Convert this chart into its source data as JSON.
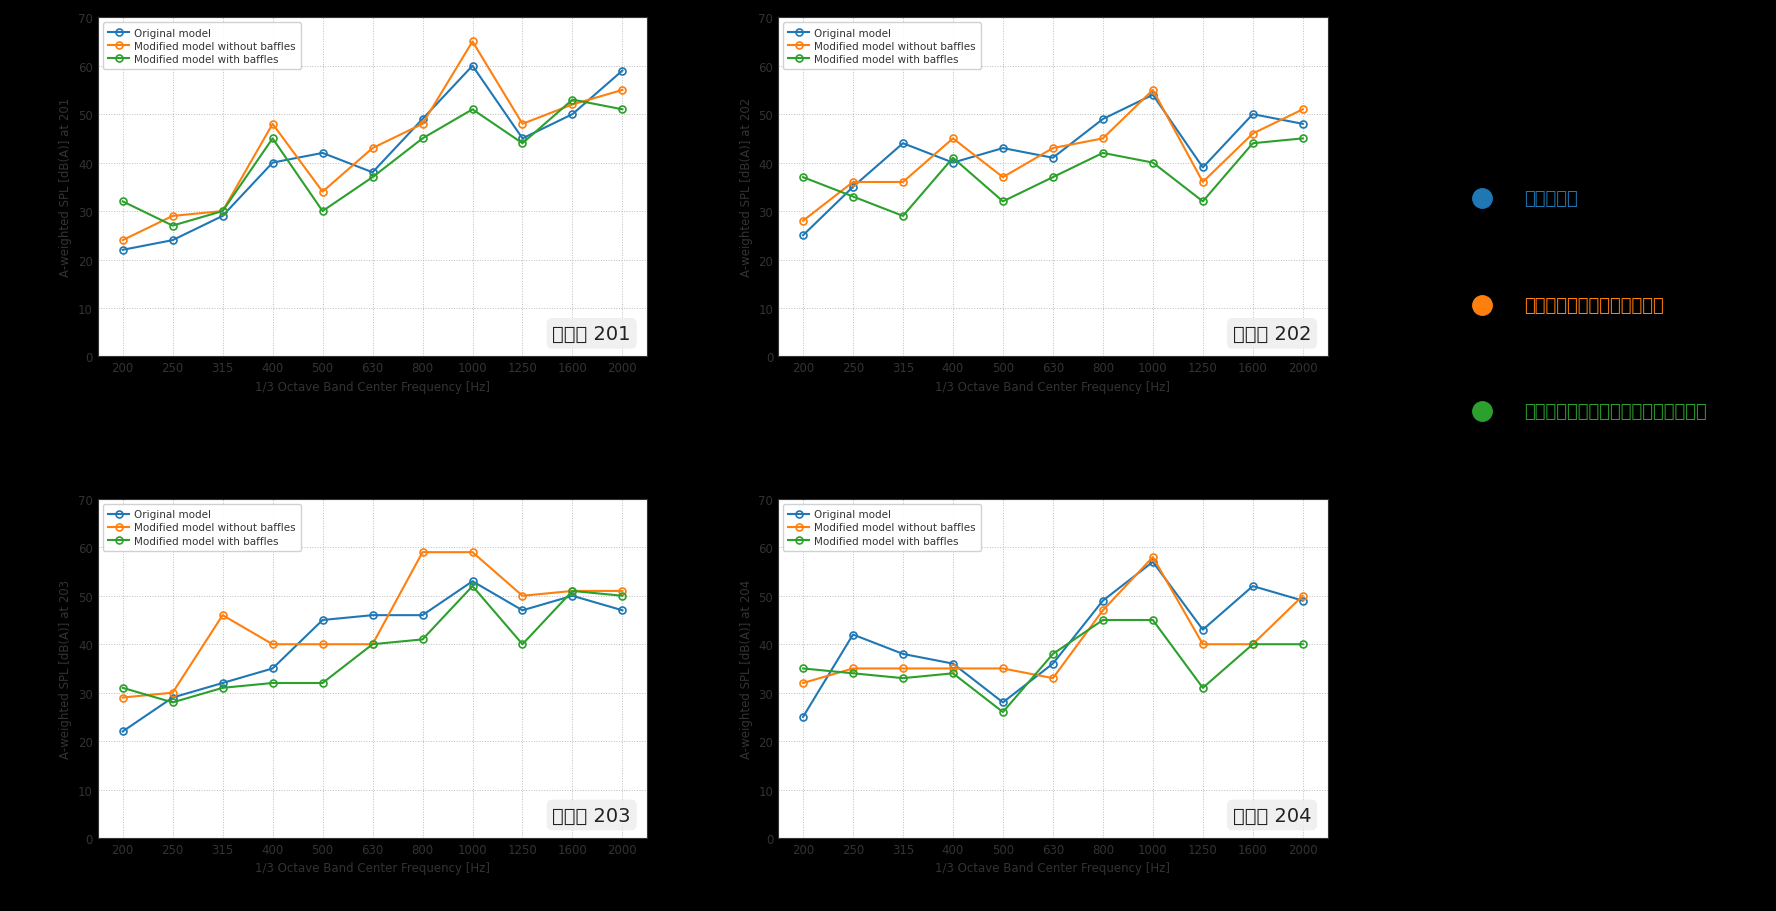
{
  "x_labels": [
    200,
    250,
    315,
    400,
    500,
    630,
    800,
    1000,
    1250,
    1600,
    2000
  ],
  "subplots": [
    {
      "title": "評価点 201",
      "ylabel": "A-weighted SPL [dB(A)] at 201",
      "original": [
        22,
        24,
        29,
        40,
        42,
        38,
        49,
        60,
        45,
        50,
        59
      ],
      "without_baffles": [
        24,
        29,
        30,
        48,
        34,
        43,
        48,
        65,
        48,
        52,
        55
      ],
      "with_baffles": [
        32,
        27,
        30,
        45,
        30,
        37,
        45,
        51,
        44,
        53,
        51
      ]
    },
    {
      "title": "評価点 202",
      "ylabel": "A-weighted SPL [dB(A)] at 202",
      "original": [
        25,
        35,
        44,
        40,
        43,
        41,
        49,
        54,
        39,
        50,
        48
      ],
      "without_baffles": [
        28,
        36,
        36,
        45,
        37,
        43,
        45,
        55,
        36,
        46,
        51
      ],
      "with_baffles": [
        37,
        33,
        29,
        41,
        32,
        37,
        42,
        40,
        32,
        44,
        45
      ]
    },
    {
      "title": "評価点 203",
      "ylabel": "A-weighted SPL [dB(A)] at 203",
      "original": [
        22,
        29,
        32,
        35,
        45,
        46,
        46,
        53,
        47,
        50,
        47
      ],
      "without_baffles": [
        29,
        30,
        46,
        40,
        40,
        40,
        59,
        59,
        50,
        51,
        51
      ],
      "with_baffles": [
        31,
        28,
        31,
        32,
        32,
        40,
        41,
        52,
        40,
        51,
        50
      ]
    },
    {
      "title": "評価点 204",
      "ylabel": "A-weighted SPL [dB(A)] at 204",
      "original": [
        25,
        42,
        38,
        36,
        28,
        36,
        49,
        57,
        43,
        52,
        49
      ],
      "without_baffles": [
        32,
        35,
        35,
        35,
        35,
        33,
        47,
        58,
        40,
        40,
        50
      ],
      "with_baffles": [
        35,
        34,
        33,
        34,
        26,
        38,
        45,
        45,
        31,
        40,
        40
      ]
    }
  ],
  "color_original": "#1f77b4",
  "color_without": "#ff7f0e",
  "color_with": "#2ca02c",
  "legend_ja": [
    {
      "text": "現行モデル",
      "color": "#1f77b4"
    },
    {
      "text": "修正モデル（ジャマ板なし）",
      "color": "#ff7f0e"
    },
    {
      "text": "修正モデル（吸音材付ジャマ板あり）",
      "color": "#2ca02c"
    }
  ],
  "fig_bg": "#000000",
  "plot_bg": "#ffffff",
  "ylim": [
    0,
    70
  ],
  "yticks": [
    0,
    10,
    20,
    30,
    40,
    50,
    60,
    70
  ]
}
